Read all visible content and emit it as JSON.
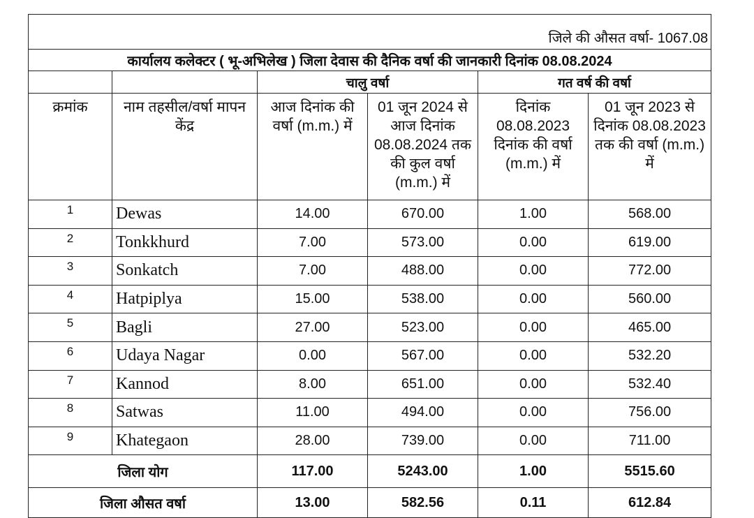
{
  "header": {
    "average_note": "जिले की औसत वर्षा- 1067.08",
    "title": "कार्यालय कलेक्टर ( भू-अभिलेख ) जिला देवास की दैनिक वर्षा की जानकारी दिनांक 08.08.2024"
  },
  "table": {
    "group_headers": [
      "चालु वर्षा",
      "गत वर्ष की वर्षा"
    ],
    "columns": [
      "क्रमांक",
      "नाम तहसील/वर्षा मापन केंद्र",
      "आज दिनांक की वर्षा (m.m.) में",
      "01 जून 2024 से आज दिनांक 08.08.2024 तक की कुल वर्षा (m.m.) में",
      "दिनांक 08.08.2023 दिनांक की वर्षा (m.m.) में",
      "01 जून 2023 से दिनांक 08.08.2023 तक की वर्षा (m.m.) में"
    ],
    "rows": [
      [
        "1",
        "Dewas",
        "14.00",
        "670.00",
        "1.00",
        "568.00"
      ],
      [
        "2",
        "Tonkkhurd",
        "7.00",
        "573.00",
        "0.00",
        "619.00"
      ],
      [
        "3",
        "Sonkatch",
        "7.00",
        "488.00",
        "0.00",
        "772.00"
      ],
      [
        "4",
        "Hatpiplya",
        "15.00",
        "538.00",
        "0.00",
        "560.00"
      ],
      [
        "5",
        "Bagli",
        "27.00",
        "523.00",
        "0.00",
        "465.00"
      ],
      [
        "6",
        "Udaya Nagar",
        "0.00",
        "567.00",
        "0.00",
        "532.20"
      ],
      [
        "7",
        "Kannod",
        "8.00",
        "651.00",
        "0.00",
        "532.40"
      ],
      [
        "8",
        "Satwas",
        "11.00",
        "494.00",
        "0.00",
        "756.00"
      ],
      [
        "9",
        "Khategaon",
        "28.00",
        "739.00",
        "0.00",
        "711.00"
      ]
    ],
    "total": {
      "label": "जिला योग",
      "values": [
        "117.00",
        "5243.00",
        "1.00",
        "5515.60"
      ]
    },
    "average": {
      "label": "जिला औसत वर्षा",
      "values": [
        "13.00",
        "582.56",
        "0.11",
        "612.84"
      ]
    }
  }
}
